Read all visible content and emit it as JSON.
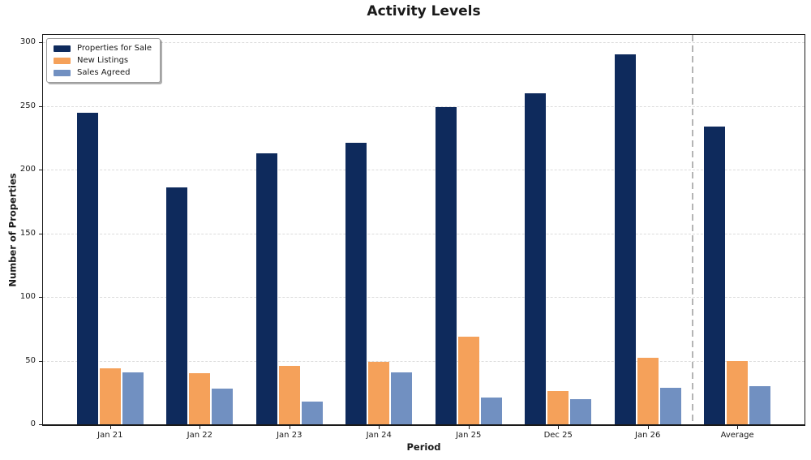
{
  "chart_data": {
    "type": "bar",
    "title": "Activity Levels",
    "xlabel": "Period",
    "ylabel": "Number of Properties",
    "categories": [
      "Jan 21",
      "Jan 22",
      "Jan 23",
      "Jan 24",
      "Jan 25",
      "Dec 25",
      "Jan 26",
      "Average"
    ],
    "series": [
      {
        "name": "Properties for Sale",
        "color": "#0e2a5c",
        "values": [
          245,
          186,
          213,
          221,
          249,
          260,
          291,
          234
        ]
      },
      {
        "name": "New Listings",
        "color": "#f5a15a",
        "values": [
          44,
          40,
          46,
          49,
          69,
          26,
          52,
          50
        ]
      },
      {
        "name": "Sales Agreed",
        "color": "#7190c1",
        "values": [
          41,
          28,
          18,
          41,
          21,
          20,
          29,
          30
        ]
      }
    ],
    "ylim": [
      0,
      306
    ],
    "yticks": [
      0,
      50,
      100,
      150,
      200,
      250,
      300
    ],
    "grid": true,
    "grid_style": "dashed",
    "legend_position": "upper left",
    "separator": {
      "after_category": "Jan 26",
      "style": "dashed",
      "color": "#b4b4b4"
    }
  }
}
